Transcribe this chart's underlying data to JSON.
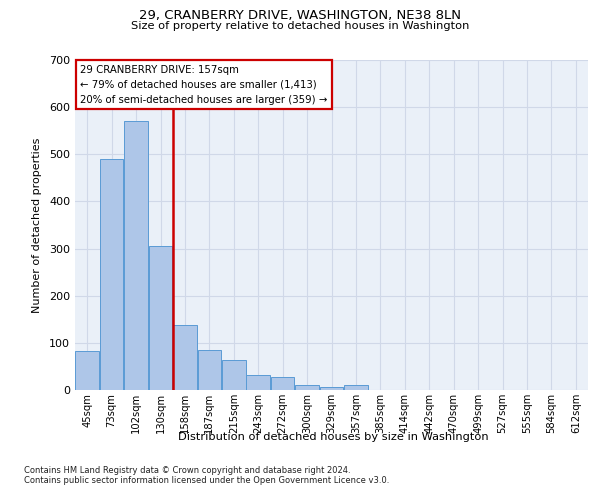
{
  "title_line1": "29, CRANBERRY DRIVE, WASHINGTON, NE38 8LN",
  "title_line2": "Size of property relative to detached houses in Washington",
  "xlabel": "Distribution of detached houses by size in Washington",
  "ylabel": "Number of detached properties",
  "categories": [
    "45sqm",
    "73sqm",
    "102sqm",
    "130sqm",
    "158sqm",
    "187sqm",
    "215sqm",
    "243sqm",
    "272sqm",
    "300sqm",
    "329sqm",
    "357sqm",
    "385sqm",
    "414sqm",
    "442sqm",
    "470sqm",
    "499sqm",
    "527sqm",
    "555sqm",
    "584sqm",
    "612sqm"
  ],
  "values": [
    83,
    490,
    570,
    305,
    137,
    85,
    63,
    32,
    27,
    10,
    7,
    10,
    0,
    0,
    0,
    0,
    0,
    0,
    0,
    0,
    0
  ],
  "bar_color": "#aec6e8",
  "bar_edge_color": "#5a9bd5",
  "vline_index": 3.5,
  "vline_color": "#cc0000",
  "annotation_line1": "29 CRANBERRY DRIVE: 157sqm",
  "annotation_line2": "← 79% of detached houses are smaller (1,413)",
  "annotation_line3": "20% of semi-detached houses are larger (359) →",
  "annotation_box_facecolor": "#ffffff",
  "annotation_box_edgecolor": "#cc0000",
  "ylim": [
    0,
    700
  ],
  "yticks": [
    0,
    100,
    200,
    300,
    400,
    500,
    600,
    700
  ],
  "grid_color": "#d0d8e8",
  "plot_bg_color": "#eaf0f8",
  "footer_line1": "Contains HM Land Registry data © Crown copyright and database right 2024.",
  "footer_line2": "Contains public sector information licensed under the Open Government Licence v3.0."
}
